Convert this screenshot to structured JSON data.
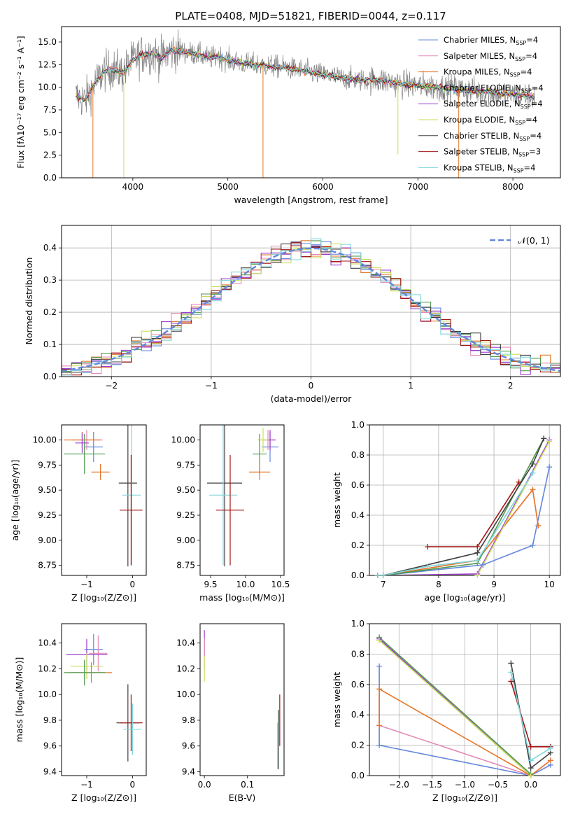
{
  "figure_title": "PLATE=0408, MJD=51821, FIBERID=0044, z=0.117",
  "colors": {
    "cornflower": "#6487dc",
    "pink": "#e48ab8",
    "orange": "#e6782a",
    "green": "#4e9a4e",
    "purple": "#9b3dd1",
    "lime": "#c9de5a",
    "dark": "#404040",
    "darkred": "#a31515",
    "cyan": "#7fd6db",
    "grey": "#808080"
  },
  "chart_data": [
    {
      "id": "spectrum",
      "type": "line",
      "title": "PLATE=0408, MJD=51821, FIBERID=0044, z=0.117",
      "xlabel": "wavelength [Angstrom, rest frame]",
      "ylabel": "Flux [fλ10⁻¹⁷ erg cm⁻² s⁻¹ A⁻¹]",
      "xlim": [
        3250,
        8500
      ],
      "ylim": [
        0,
        16.7
      ],
      "xticks": [
        4000,
        5000,
        6000,
        7000,
        8000
      ],
      "yticks": [
        0.0,
        2.5,
        5.0,
        7.5,
        10.0,
        12.5,
        15.0
      ],
      "legend_position": "top-right",
      "series": [
        {
          "name": "Chabrier MILES, N_SSP=4",
          "label_main": "Chabrier MILES, N",
          "label_sub": "SSP",
          "label_tail": "=4",
          "color": "cornflower"
        },
        {
          "name": "Salpeter MILES, N_SSP=4",
          "label_main": "Salpeter MILES, N",
          "label_sub": "SSP",
          "label_tail": "=4",
          "color": "pink"
        },
        {
          "name": "Kroupa MILES, N_SSP=4",
          "label_main": "Kroupa MILES, N",
          "label_sub": "SSP",
          "label_tail": "=4",
          "color": "orange"
        },
        {
          "name": "Chabrier ELODIE, N_SSP=4",
          "label_main": "Chabrier ELODIE, N",
          "label_sub": "SSP",
          "label_tail": "=4",
          "color": "green"
        },
        {
          "name": "Salpeter ELODIE, N_SSP=4",
          "label_main": "Salpeter ELODIE, N",
          "label_sub": "SSP",
          "label_tail": "=4",
          "color": "purple"
        },
        {
          "name": "Kroupa ELODIE, N_SSP=4",
          "label_main": "Kroupa ELODIE, N",
          "label_sub": "SSP",
          "label_tail": "=4",
          "color": "lime"
        },
        {
          "name": "Chabrier STELIB, N_SSP=4",
          "label_main": "Chabrier STELIB, N",
          "label_sub": "SSP",
          "label_tail": "=4",
          "color": "dark"
        },
        {
          "name": "Salpeter STELIB, N_SSP=3",
          "label_main": "Salpeter STELIB, N",
          "label_sub": "SSP",
          "label_tail": "=3",
          "color": "darkred"
        },
        {
          "name": "Kroupa STELIB, N_SSP=4",
          "label_main": "Kroupa STELIB, N",
          "label_sub": "SSP",
          "label_tail": "=4",
          "color": "cyan"
        }
      ],
      "model_points": {
        "x": [
          3400,
          3500,
          3600,
          3700,
          3800,
          3900,
          4000,
          4100,
          4200,
          4300,
          4400,
          4500,
          4600,
          4700,
          4800,
          4900,
          5000,
          5200,
          5400,
          5600,
          5800,
          6000,
          6200,
          6400,
          6600,
          6800,
          7000,
          7200,
          7400,
          7600,
          7800,
          8000,
          8200
        ],
        "y": [
          9.0,
          8.6,
          10.4,
          11.8,
          12.0,
          11.6,
          13.0,
          13.6,
          13.8,
          13.2,
          14.0,
          14.0,
          13.8,
          13.6,
          13.2,
          13.4,
          13.0,
          12.6,
          12.4,
          12.2,
          11.8,
          11.4,
          11.0,
          10.8,
          10.8,
          10.4,
          10.2,
          10.0,
          9.8,
          9.6,
          9.4,
          9.2,
          9.0
        ]
      },
      "model_dips": [
        {
          "x": 3580,
          "y": 0.0,
          "color": "orange"
        },
        {
          "x": 3905,
          "y": 0.0,
          "color": "lime"
        },
        {
          "x": 5370,
          "y": 0.0,
          "color": "orange"
        },
        {
          "x": 6790,
          "y": 2.6,
          "color": "lime"
        },
        {
          "x": 7430,
          "y": 0.0,
          "color": "orange"
        }
      ]
    },
    {
      "id": "residuals",
      "type": "histogram",
      "xlabel": "(data-model)/error",
      "ylabel": "Normed distribution",
      "xlim": [
        -2.5,
        2.5
      ],
      "ylim": [
        0,
        0.47
      ],
      "xticks": [
        -2,
        -1,
        0,
        1,
        2
      ],
      "yticks": [
        0.0,
        0.1,
        0.2,
        0.3,
        0.4
      ],
      "grid": true,
      "legend": "𝒩(0, 1)",
      "legend_position": "top-right",
      "reference": {
        "type": "gaussian",
        "mean": 0,
        "sigma": 1,
        "color": "cornflower",
        "style": "dashed"
      },
      "bin_width": 0.1,
      "series_colors": [
        "cornflower",
        "pink",
        "orange",
        "green",
        "purple",
        "lime",
        "dark",
        "darkred",
        "cyan"
      ]
    },
    {
      "id": "age_vs_Z",
      "type": "errorbar",
      "xlabel": "Z [log₁₀(Z/Z⊙)]",
      "ylabel": "age  [log₁₀(age/yr)]",
      "xlim": [
        -1.55,
        0.3
      ],
      "ylim": [
        8.65,
        10.15
      ],
      "xticks": [
        -1,
        0
      ],
      "yticks": [
        8.75,
        9.0,
        9.25,
        9.5,
        9.75,
        10.0
      ],
      "points": [
        {
          "c": "cornflower",
          "x": -0.85,
          "xe": 0.2,
          "y": 9.93,
          "ye": 0.15
        },
        {
          "c": "pink",
          "x": -1.0,
          "xe": 0.35,
          "y": 10.0,
          "ye": 0.1
        },
        {
          "c": "orange",
          "x": -1.1,
          "xe": 0.4,
          "y": 10.0,
          "ye": 0.08
        },
        {
          "c": "green",
          "x": -1.05,
          "xe": 0.45,
          "y": 9.86,
          "ye": 0.2
        },
        {
          "c": "purple",
          "x": -1.1,
          "xe": 0.15,
          "y": 9.97,
          "ye": 0.1
        },
        {
          "c": "orange",
          "x": -0.7,
          "xe": 0.2,
          "y": 9.68,
          "ye": 0.08
        },
        {
          "c": "dark",
          "x": -0.1,
          "xe": 0.2,
          "y": 9.57,
          "ye": 0.83
        },
        {
          "c": "cyan",
          "x": -0.02,
          "xe": 0.2,
          "y": 9.45,
          "ye": 0.7
        },
        {
          "c": "darkred",
          "x": -0.03,
          "xe": 0.25,
          "y": 9.3,
          "ye": 0.55
        }
      ]
    },
    {
      "id": "age_vs_mass",
      "type": "errorbar",
      "xlabel": "mass [log₁₀(M/M⊙)]",
      "xlim": [
        9.35,
        10.55
      ],
      "ylim": [
        8.65,
        10.15
      ],
      "xticks": [
        9.5,
        10.0,
        10.5
      ],
      "yticks": [
        8.75,
        9.0,
        9.25,
        9.5,
        9.75,
        10.0
      ],
      "points": [
        {
          "c": "cornflower",
          "x": 10.35,
          "xe": 0.12,
          "y": 9.93,
          "ye": 0.15
        },
        {
          "c": "pink",
          "x": 10.32,
          "xe": 0.1,
          "y": 10.0,
          "ye": 0.1
        },
        {
          "c": "purple",
          "x": 10.35,
          "xe": 0.08,
          "y": 10.0,
          "ye": 0.1
        },
        {
          "c": "lime",
          "x": 10.25,
          "xe": 0.08,
          "y": 10.0,
          "ye": 0.12
        },
        {
          "c": "green",
          "x": 10.2,
          "xe": 0.1,
          "y": 9.86,
          "ye": 0.2
        },
        {
          "c": "orange",
          "x": 10.2,
          "xe": 0.15,
          "y": 9.68,
          "ye": 0.08
        },
        {
          "c": "dark",
          "x": 9.7,
          "xe": 0.25,
          "y": 9.57,
          "ye": 0.83
        },
        {
          "c": "cyan",
          "x": 9.68,
          "xe": 0.2,
          "y": 9.45,
          "ye": 0.7
        },
        {
          "c": "darkred",
          "x": 9.78,
          "xe": 0.2,
          "y": 9.3,
          "ye": 0.55
        }
      ]
    },
    {
      "id": "weight_vs_age",
      "type": "line",
      "xlabel": "age  [log₁₀(age/yr)]",
      "ylabel": "mass weight",
      "xlim": [
        6.75,
        10.2
      ],
      "ylim": [
        0,
        1.0
      ],
      "xticks": [
        7,
        8,
        9,
        10
      ],
      "yticks": [
        0.0,
        0.2,
        0.4,
        0.6,
        0.8,
        1.0
      ],
      "grid": true,
      "series": [
        {
          "c": "cornflower",
          "x": [
            6.9,
            7.0,
            8.8,
            9.7,
            10.0
          ],
          "y": [
            0.0,
            0.0,
            0.07,
            0.2,
            0.72
          ]
        },
        {
          "c": "pink",
          "x": [
            6.9,
            7.0,
            8.7,
            9.7,
            9.8
          ],
          "y": [
            0.0,
            0.0,
            0.1,
            0.57,
            0.33
          ]
        },
        {
          "c": "orange",
          "x": [
            6.9,
            7.0,
            8.7,
            9.7,
            9.8
          ],
          "y": [
            0.0,
            0.0,
            0.1,
            0.57,
            0.33
          ]
        },
        {
          "c": "green",
          "x": [
            6.9,
            7.0,
            8.7,
            9.9
          ],
          "y": [
            0.0,
            0.0,
            0.08,
            0.91
          ]
        },
        {
          "c": "purple",
          "x": [
            6.9,
            7.0,
            8.7,
            10.0
          ],
          "y": [
            0.0,
            0.0,
            0.01,
            0.9
          ]
        },
        {
          "c": "lime",
          "x": [
            6.9,
            7.0,
            8.7,
            10.0
          ],
          "y": [
            0.0,
            0.0,
            0.0,
            0.89
          ]
        },
        {
          "c": "dark",
          "x": [
            6.9,
            7.0,
            8.7,
            9.7,
            9.9
          ],
          "y": [
            0.0,
            0.0,
            0.15,
            0.74,
            0.91
          ]
        },
        {
          "c": "darkred",
          "x": [
            7.8,
            8.7,
            9.45
          ],
          "y": [
            0.19,
            0.19,
            0.62
          ]
        },
        {
          "c": "cyan",
          "x": [
            6.9,
            7.0,
            7.8,
            8.7,
            9.7
          ],
          "y": [
            0.0,
            0.0,
            0.06,
            0.1,
            0.68
          ]
        }
      ]
    },
    {
      "id": "mass_vs_Z",
      "type": "errorbar",
      "xlabel": "Z [log₁₀(Z/Z⊙)]",
      "ylabel": "mass [log₁₀(M/M⊙)]",
      "xlim": [
        -1.55,
        0.3
      ],
      "ylim": [
        9.37,
        10.55
      ],
      "xticks": [
        -1,
        0
      ],
      "yticks": [
        9.4,
        9.6,
        9.8,
        10.0,
        10.2,
        10.4
      ],
      "points": [
        {
          "c": "cornflower",
          "x": -0.85,
          "xe": 0.2,
          "y": 10.35,
          "ye": 0.12
        },
        {
          "c": "pink",
          "x": -0.75,
          "xe": 0.2,
          "y": 10.32,
          "ye": 0.14
        },
        {
          "c": "purple",
          "x": -1.0,
          "xe": 0.45,
          "y": 10.31,
          "ye": 0.12
        },
        {
          "c": "lime",
          "x": -1.0,
          "xe": 0.35,
          "y": 10.22,
          "ye": 0.1
        },
        {
          "c": "orange",
          "x": -0.9,
          "xe": 0.45,
          "y": 10.17,
          "ye": 0.08
        },
        {
          "c": "green",
          "x": -1.05,
          "xe": 0.45,
          "y": 10.17,
          "ye": 0.1
        },
        {
          "c": "dark",
          "x": -0.1,
          "xe": 0.25,
          "y": 9.78,
          "ye": 0.3
        },
        {
          "c": "darkred",
          "x": -0.03,
          "xe": 0.25,
          "y": 9.78,
          "ye": 0.22
        },
        {
          "c": "cyan",
          "x": 0.0,
          "xe": 0.2,
          "y": 9.73,
          "ye": 0.2
        }
      ]
    },
    {
      "id": "mass_vs_ebv",
      "type": "errorbar",
      "xlabel": "E(B-V)",
      "xlim": [
        -0.01,
        0.185
      ],
      "ylim": [
        9.37,
        10.55
      ],
      "xticks": [
        0.0,
        0.1
      ],
      "yticks": [
        9.4,
        9.6,
        9.8,
        10.0,
        10.2,
        10.4
      ],
      "points": [
        {
          "c": "purple",
          "x": 0.0,
          "xe": 0.0,
          "y": 10.4,
          "ye": 0.1
        },
        {
          "c": "pink",
          "x": 0.0,
          "xe": 0.0,
          "y": 10.32,
          "ye": 0.12
        },
        {
          "c": "lime",
          "x": 0.0,
          "xe": 0.0,
          "y": 10.2,
          "ye": 0.1
        },
        {
          "c": "darkred",
          "x": 0.175,
          "xe": 0.0,
          "y": 9.8,
          "ye": 0.2
        },
        {
          "c": "dark",
          "x": 0.172,
          "xe": 0.0,
          "y": 9.65,
          "ye": 0.23
        },
        {
          "c": "cyan",
          "x": 0.17,
          "xe": 0.0,
          "y": 9.6,
          "ye": 0.18
        }
      ]
    },
    {
      "id": "weight_vs_Z",
      "type": "line",
      "xlabel": "Z [log₁₀(Z/Z⊙)]",
      "ylabel": "mass weight",
      "xlim": [
        -2.45,
        0.45
      ],
      "ylim": [
        0,
        1.0
      ],
      "xticks": [
        -2.0,
        -1.5,
        -1.0,
        -0.5,
        0.0
      ],
      "yticks": [
        0.0,
        0.2,
        0.4,
        0.6,
        0.8,
        1.0
      ],
      "grid": true,
      "series": [
        {
          "c": "cornflower",
          "x": [
            -2.3,
            -2.3,
            0.0,
            0.3
          ],
          "y": [
            0.72,
            0.2,
            0.0,
            0.07
          ]
        },
        {
          "c": "pink",
          "x": [
            -2.3,
            0.0,
            0.3
          ],
          "y": [
            0.33,
            0.0,
            0.1
          ]
        },
        {
          "c": "orange",
          "x": [
            -2.3,
            -2.3,
            0.0,
            0.3
          ],
          "y": [
            0.33,
            0.57,
            0.0,
            0.1
          ]
        },
        {
          "c": "green",
          "x": [
            -2.3,
            0.0
          ],
          "y": [
            0.91,
            0.01
          ]
        },
        {
          "c": "purple",
          "x": [
            -2.3,
            0.0
          ],
          "y": [
            0.9,
            0.0
          ]
        },
        {
          "c": "lime",
          "x": [
            -2.3,
            0.0
          ],
          "y": [
            0.89,
            0.0
          ]
        },
        {
          "c": "dark",
          "x": [
            -0.3,
            0.0,
            0.3
          ],
          "y": [
            0.74,
            0.05,
            0.15
          ]
        },
        {
          "c": "darkred",
          "x": [
            -0.3,
            0.0,
            0.3
          ],
          "y": [
            0.62,
            0.19,
            0.19
          ]
        },
        {
          "c": "cyan",
          "x": [
            -0.3,
            0.0,
            0.3
          ],
          "y": [
            0.68,
            0.1,
            0.18
          ]
        }
      ]
    }
  ]
}
